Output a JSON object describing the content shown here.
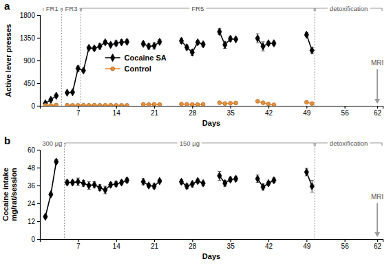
{
  "chart_data": [
    {
      "type": "line",
      "title": "a",
      "xlabel": "Days",
      "ylabel": "Active lever presses",
      "xlim": [
        0,
        63
      ],
      "ylim": [
        0,
        1800
      ],
      "xticks": [
        7,
        14,
        21,
        28,
        35,
        42,
        49,
        56,
        62
      ],
      "yticks": [
        0,
        450,
        900,
        1350,
        1800
      ],
      "legend": "center",
      "annotations": [
        {
          "text": "FR1",
          "x": [
            0.5,
            4
          ]
        },
        {
          "text": "FR3",
          "x": [
            4,
            7.5
          ]
        },
        {
          "text": "FR5",
          "x": [
            7.5,
            50.5
          ]
        },
        {
          "text": "detoxification",
          "x": [
            50.5,
            63
          ]
        },
        {
          "text": "MRI",
          "x": 62
        }
      ],
      "series": [
        {
          "name": "Cocaine SA",
          "color": "#000000",
          "marker": "diamond",
          "x": [
            1,
            2,
            3,
            4,
            5,
            6,
            7,
            8,
            9,
            10,
            11,
            12,
            13,
            14,
            15,
            16,
            17,
            19,
            20,
            21,
            22,
            24,
            26,
            27,
            28,
            29,
            30,
            31,
            33,
            34,
            35,
            36,
            38,
            40,
            41,
            42,
            43,
            45,
            49,
            50
          ],
          "values": [
            50,
            120,
            200,
            null,
            260,
            270,
            740,
            700,
            1150,
            1140,
            1180,
            1260,
            1210,
            1240,
            1260,
            1270,
            null,
            1230,
            1180,
            1190,
            1270,
            null,
            1290,
            1160,
            1060,
            1260,
            1220,
            null,
            1470,
            1210,
            1330,
            1320,
            null,
            1340,
            1180,
            1240,
            1240,
            null,
            1410,
            1100
          ],
          "errors": [
            10,
            15,
            20,
            null,
            20,
            20,
            50,
            20,
            30,
            40,
            50,
            40,
            40,
            50,
            50,
            40,
            null,
            40,
            50,
            60,
            40,
            null,
            50,
            50,
            60,
            40,
            40,
            null,
            60,
            70,
            50,
            30,
            null,
            90,
            90,
            40,
            40,
            null,
            40,
            60
          ]
        },
        {
          "name": "Control",
          "color": "#e8913a",
          "marker": "circle",
          "x": [
            1,
            2,
            3,
            4,
            5,
            6,
            7,
            8,
            9,
            10,
            11,
            12,
            13,
            14,
            15,
            16,
            17,
            19,
            20,
            21,
            22,
            24,
            26,
            27,
            28,
            29,
            30,
            31,
            33,
            34,
            35,
            36,
            38,
            40,
            41,
            42,
            43,
            45,
            49,
            50
          ],
          "values": [
            10,
            8,
            15,
            null,
            12,
            10,
            10,
            12,
            10,
            12,
            10,
            10,
            12,
            10,
            10,
            10,
            null,
            30,
            25,
            30,
            25,
            null,
            35,
            30,
            25,
            25,
            30,
            null,
            60,
            45,
            50,
            55,
            null,
            90,
            60,
            35,
            20,
            null,
            70,
            45
          ]
        }
      ]
    },
    {
      "type": "line",
      "title": "b",
      "xlabel": "Days",
      "ylabel": [
        "Cocaine intake",
        "mg/rat/session"
      ],
      "xlim": [
        0,
        63
      ],
      "ylim": [
        0,
        60
      ],
      "xticks": [
        7,
        14,
        21,
        28,
        35,
        42,
        49,
        56,
        62
      ],
      "yticks": [
        0,
        12,
        24,
        36,
        48,
        60
      ],
      "annotations": [
        {
          "text": "300 µg",
          "x": [
            0.5,
            4
          ]
        },
        {
          "text": "150 µg",
          "x": [
            4.5,
            50.5
          ]
        },
        {
          "text": "detoxification",
          "x": [
            50.5,
            63
          ]
        },
        {
          "text": "MRI",
          "x": 62
        }
      ],
      "series": [
        {
          "color": "#000000",
          "marker": "diamond",
          "x": [
            1,
            2,
            3,
            4,
            5,
            6,
            7,
            8,
            9,
            10,
            11,
            12,
            13,
            14,
            15,
            16,
            17,
            19,
            20,
            21,
            22,
            24,
            26,
            27,
            28,
            29,
            30,
            31,
            33,
            34,
            35,
            36,
            38,
            40,
            41,
            42,
            43,
            45,
            49,
            50
          ],
          "values": [
            15,
            30,
            52,
            null,
            38,
            38,
            38.5,
            37.5,
            36,
            36.5,
            34.5,
            33,
            36.5,
            37,
            38,
            39.5,
            null,
            38.5,
            36,
            35.5,
            39,
            null,
            38.5,
            35.5,
            37,
            39,
            37.5,
            null,
            42.5,
            37.5,
            40,
            40.5,
            null,
            40.5,
            35,
            37.5,
            39.5,
            null,
            45,
            35.5
          ],
          "errors": [
            1,
            1,
            1.5,
            null,
            1.5,
            1.5,
            2.5,
            2,
            2.5,
            2,
            2,
            2.5,
            1.5,
            1.5,
            1.5,
            1.5,
            null,
            2,
            1.5,
            1.5,
            1,
            null,
            1.5,
            1.5,
            2,
            1.5,
            1.5,
            null,
            3,
            2,
            1.5,
            1.5,
            null,
            2.5,
            2,
            1.5,
            1.5,
            null,
            2.5,
            4
          ]
        }
      ]
    }
  ]
}
